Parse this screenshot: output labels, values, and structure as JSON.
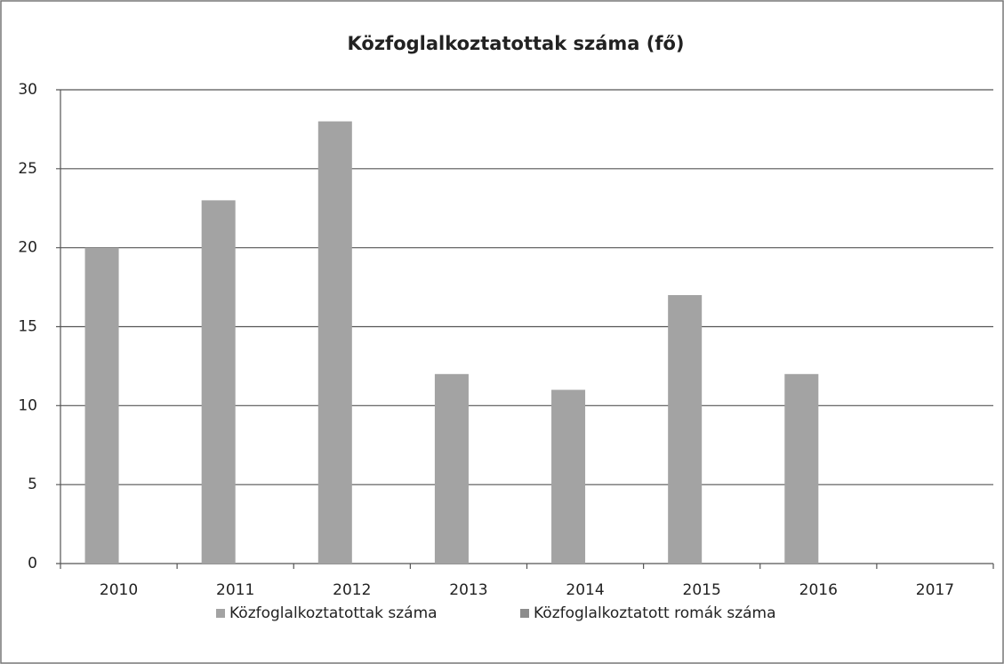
{
  "chart_data": {
    "type": "bar",
    "title": "Közfoglalkoztatottak száma (fő)",
    "categories": [
      "2010",
      "2011",
      "2012",
      "2013",
      "2014",
      "2015",
      "2016",
      "2017"
    ],
    "series": [
      {
        "name": "Közfoglalkoztatottak száma",
        "color": "#a3a3a3",
        "values": [
          20,
          23,
          28,
          12,
          11,
          17,
          12,
          0
        ]
      },
      {
        "name": "Közfoglalkoztatott romák száma",
        "color": "#8c8c8c",
        "values": [
          0,
          0,
          0,
          0,
          0,
          0,
          0,
          0
        ]
      }
    ],
    "ylim": [
      0,
      30
    ],
    "yticks": [
      0,
      5,
      10,
      15,
      20,
      25,
      30
    ],
    "grid": true,
    "legend": "bottom"
  }
}
